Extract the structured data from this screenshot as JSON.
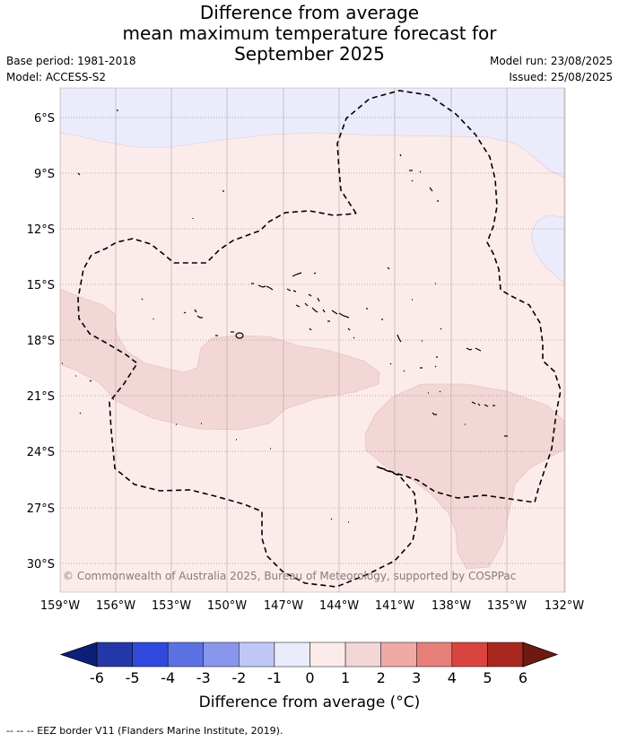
{
  "title": {
    "line1": "Difference from average",
    "line2": "mean maximum temperature forecast for",
    "line3": "September 2025"
  },
  "meta": {
    "base_period": "Base period: 1981-2018",
    "model": "Model: ACCESS-S2",
    "model_run": "Model run: 23/08/2025",
    "issued": "Issued: 25/08/2025"
  },
  "map": {
    "lat_labels": [
      "6°S",
      "9°S",
      "12°S",
      "15°S",
      "18°S",
      "21°S",
      "24°S",
      "27°S",
      "30°S"
    ],
    "lon_labels": [
      "159°W",
      "156°W",
      "153°W",
      "150°W",
      "147°W",
      "144°W",
      "141°W",
      "138°W",
      "135°W",
      "132°W"
    ],
    "copyright": "© Commonwealth of Australia 2025, Bureau of Meteorology, supported by COSPPac",
    "colors": {
      "band_m1_0": "#eaecfb",
      "band_0_1": "#fbeceb",
      "band_1_2": "#f3d6d6",
      "grid": "#a07070"
    }
  },
  "colorbar": {
    "ticks": [
      "-6",
      "-5",
      "-4",
      "-3",
      "-2",
      "-1",
      "0",
      "1",
      "2",
      "3",
      "4",
      "5",
      "6"
    ],
    "colors": [
      "#0e1f7a",
      "#2437a8",
      "#2f49dc",
      "#5c71e4",
      "#8996ec",
      "#c0c7f6",
      "#eaecfb",
      "#fbeceb",
      "#f3d6d6",
      "#efaaa8",
      "#e67f7a",
      "#d9453e",
      "#a82820",
      "#6e1a12"
    ],
    "label": "Difference from average (°C)"
  },
  "footnote": "--  --  -- EEZ border V11 (Flanders Marine Institute, 2019)."
}
